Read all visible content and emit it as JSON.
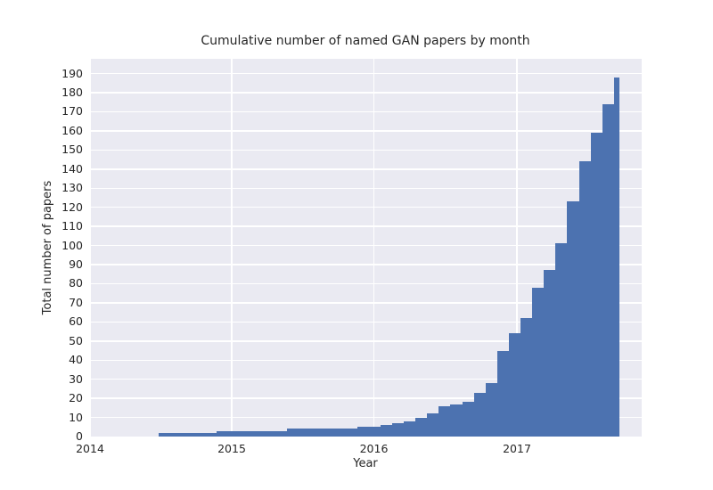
{
  "figure": {
    "title": "Cumulative number of named GAN papers by month",
    "xlabel": "Year",
    "ylabel": "Total number of papers"
  },
  "colors": {
    "bar": "#4c72b0",
    "plot_background": "#eaeaf2",
    "gridline": "#ffffff",
    "text": "#262626",
    "figure_background": "#ffffff"
  },
  "chart_data": {
    "type": "bar",
    "title": "Cumulative number of named GAN papers by month",
    "xlabel": "Year",
    "ylabel": "Total number of papers",
    "grid": true,
    "legend": "none",
    "x_tick_labels": [
      "2014",
      "2015",
      "2016",
      "2017"
    ],
    "y_ticks": [
      0,
      10,
      20,
      30,
      40,
      50,
      60,
      70,
      80,
      90,
      100,
      110,
      120,
      130,
      140,
      150,
      160,
      170,
      180,
      190
    ],
    "ylim": [
      0,
      197.5
    ],
    "x_range_months": [
      "2014-07",
      "2017-10"
    ],
    "last_bar_partial_width": true,
    "months": [
      "2014-07",
      "2014-08",
      "2014-09",
      "2014-10",
      "2014-11",
      "2014-12",
      "2015-01",
      "2015-02",
      "2015-03",
      "2015-04",
      "2015-05",
      "2015-06",
      "2015-07",
      "2015-08",
      "2015-09",
      "2015-10",
      "2015-11",
      "2015-12",
      "2016-01",
      "2016-02",
      "2016-03",
      "2016-04",
      "2016-05",
      "2016-06",
      "2016-07",
      "2016-08",
      "2016-09",
      "2016-10",
      "2016-11",
      "2016-12",
      "2017-01",
      "2017-02",
      "2017-03",
      "2017-04",
      "2017-05",
      "2017-06",
      "2017-07",
      "2017-08",
      "2017-09",
      "2017-10"
    ],
    "values": [
      2,
      2,
      2,
      2,
      2,
      3,
      3,
      3,
      3,
      3,
      3,
      4,
      4,
      4,
      4,
      4,
      4,
      5,
      5,
      6,
      7,
      8,
      10,
      12,
      16,
      17,
      18,
      23,
      28,
      45,
      54,
      62,
      78,
      87,
      101,
      123,
      144,
      159,
      174,
      188
    ]
  }
}
